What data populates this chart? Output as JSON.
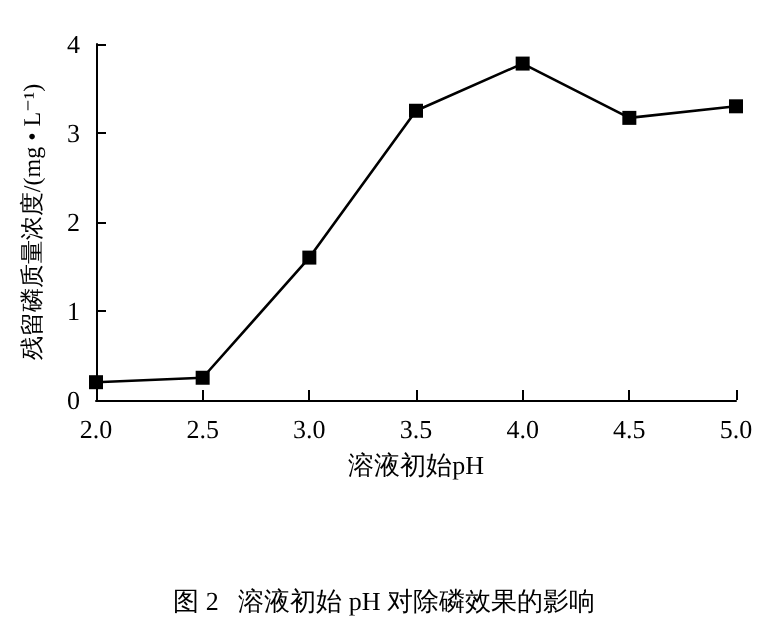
{
  "chart_data": {
    "type": "line",
    "xlabel": "溶液初始pH",
    "ylabel": "残留磷质量浓度/(mg • L⁻¹)",
    "annotations": [
      "图 2   溶液初始 pH 对除磷效果的影响"
    ],
    "x": [
      2.0,
      2.5,
      3.0,
      3.5,
      4.0,
      4.5,
      5.0
    ],
    "series": [
      {
        "color": "#000000",
        "values": [
          0.2,
          0.25,
          1.6,
          3.25,
          3.78,
          3.17,
          3.3
        ]
      }
    ],
    "xlim": [
      2,
      5
    ],
    "xticks": [
      {
        "value": 2,
        "label": "2.0"
      },
      {
        "value": 2.5,
        "label": "2.5"
      },
      {
        "value": 3,
        "label": "3.0"
      },
      {
        "value": 3.5,
        "label": "3.5"
      },
      {
        "value": 4,
        "label": "4.0"
      },
      {
        "value": 4.5,
        "label": "4.5"
      },
      {
        "value": 5,
        "label": "5.0"
      }
    ],
    "ylim": [
      0,
      4
    ],
    "yticks": [
      0,
      1,
      2,
      3,
      4
    ],
    "grid": false,
    "marker": "square",
    "line_style": "solid"
  }
}
